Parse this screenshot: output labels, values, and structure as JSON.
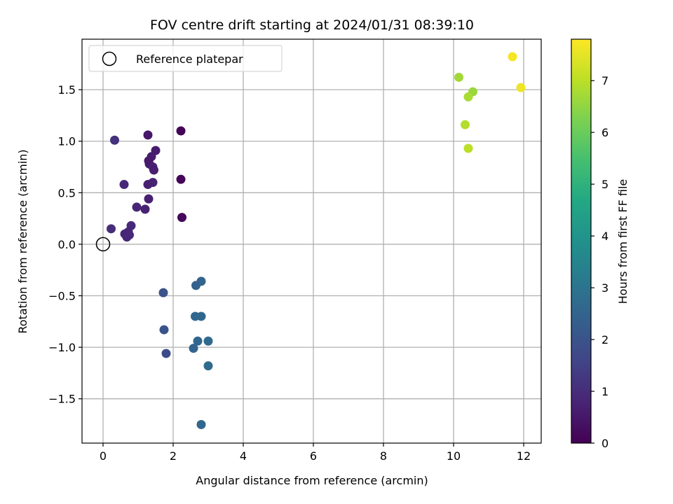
{
  "chart_data": {
    "type": "scatter",
    "title": "FOV centre drift starting at 2024/01/31 08:39:10",
    "xlabel": "Angular distance from reference (arcmin)",
    "ylabel": "Rotation from reference (arcmin)",
    "xlim": [
      -0.6,
      12.5
    ],
    "ylim": [
      -1.93,
      1.99
    ],
    "x_ticks": [
      0,
      2,
      4,
      6,
      8,
      10,
      12
    ],
    "y_ticks": [
      -1.5,
      -1.0,
      -0.5,
      0.0,
      0.5,
      1.0,
      1.5
    ],
    "x_tick_labels": [
      "0",
      "2",
      "4",
      "6",
      "8",
      "10",
      "12"
    ],
    "y_tick_labels": [
      "−1.5",
      "−1.0",
      "−0.5",
      "0.0",
      "0.5",
      "1.0",
      "1.5"
    ],
    "grid": true,
    "colormap": "viridis",
    "colorbar": {
      "label": "Hours from first FF file",
      "range": [
        0,
        7.8
      ],
      "ticks": [
        0,
        1,
        2,
        3,
        4,
        5,
        6,
        7
      ],
      "tick_labels": [
        "0",
        "1",
        "2",
        "3",
        "4",
        "5",
        "6",
        "7"
      ]
    },
    "legend": {
      "position": "top-left",
      "entries": [
        {
          "label": "Reference platepar",
          "marker": "open-circle"
        }
      ]
    },
    "reference_point": {
      "x": 0,
      "y": 0
    },
    "points": [
      {
        "x": 2.22,
        "y": 1.1,
        "c": 0.05
      },
      {
        "x": 2.22,
        "y": 0.63,
        "c": 0.1
      },
      {
        "x": 2.25,
        "y": 0.26,
        "c": 0.15
      },
      {
        "x": 1.28,
        "y": 1.06,
        "c": 0.5
      },
      {
        "x": 1.5,
        "y": 0.91,
        "c": 0.6
      },
      {
        "x": 1.38,
        "y": 0.85,
        "c": 0.6
      },
      {
        "x": 1.3,
        "y": 0.81,
        "c": 0.55
      },
      {
        "x": 1.32,
        "y": 0.78,
        "c": 0.55
      },
      {
        "x": 1.42,
        "y": 0.75,
        "c": 0.7
      },
      {
        "x": 1.45,
        "y": 0.72,
        "c": 0.65
      },
      {
        "x": 1.42,
        "y": 0.6,
        "c": 0.75
      },
      {
        "x": 1.28,
        "y": 0.58,
        "c": 0.7
      },
      {
        "x": 1.3,
        "y": 0.44,
        "c": 0.7
      },
      {
        "x": 1.2,
        "y": 0.34,
        "c": 0.75
      },
      {
        "x": 0.96,
        "y": 0.36,
        "c": 0.8
      },
      {
        "x": 0.33,
        "y": 1.01,
        "c": 1.1
      },
      {
        "x": 0.6,
        "y": 0.58,
        "c": 0.9
      },
      {
        "x": 0.8,
        "y": 0.18,
        "c": 0.9
      },
      {
        "x": 0.72,
        "y": 0.12,
        "c": 0.85
      },
      {
        "x": 0.62,
        "y": 0.1,
        "c": 0.8
      },
      {
        "x": 0.68,
        "y": 0.07,
        "c": 0.85
      },
      {
        "x": 0.75,
        "y": 0.09,
        "c": 0.9
      },
      {
        "x": 0.23,
        "y": 0.15,
        "c": 1.0
      },
      {
        "x": 1.72,
        "y": -0.47,
        "c": 2.0
      },
      {
        "x": 1.74,
        "y": -0.83,
        "c": 2.0
      },
      {
        "x": 1.8,
        "y": -1.06,
        "c": 1.8
      },
      {
        "x": 2.65,
        "y": -0.4,
        "c": 2.4
      },
      {
        "x": 2.8,
        "y": -0.36,
        "c": 2.5
      },
      {
        "x": 2.63,
        "y": -0.7,
        "c": 2.6
      },
      {
        "x": 2.8,
        "y": -0.7,
        "c": 2.6
      },
      {
        "x": 2.7,
        "y": -0.94,
        "c": 2.6
      },
      {
        "x": 3.0,
        "y": -0.94,
        "c": 2.7
      },
      {
        "x": 2.58,
        "y": -1.01,
        "c": 2.5
      },
      {
        "x": 3.0,
        "y": -1.18,
        "c": 2.7
      },
      {
        "x": 2.8,
        "y": -1.75,
        "c": 2.6
      },
      {
        "x": 10.15,
        "y": 1.62,
        "c": 6.7
      },
      {
        "x": 10.55,
        "y": 1.48,
        "c": 6.6
      },
      {
        "x": 10.42,
        "y": 1.43,
        "c": 6.8
      },
      {
        "x": 10.33,
        "y": 1.16,
        "c": 6.9
      },
      {
        "x": 10.42,
        "y": 0.93,
        "c": 7.0
      },
      {
        "x": 11.68,
        "y": 1.82,
        "c": 7.7
      },
      {
        "x": 11.92,
        "y": 1.52,
        "c": 7.6
      }
    ]
  }
}
